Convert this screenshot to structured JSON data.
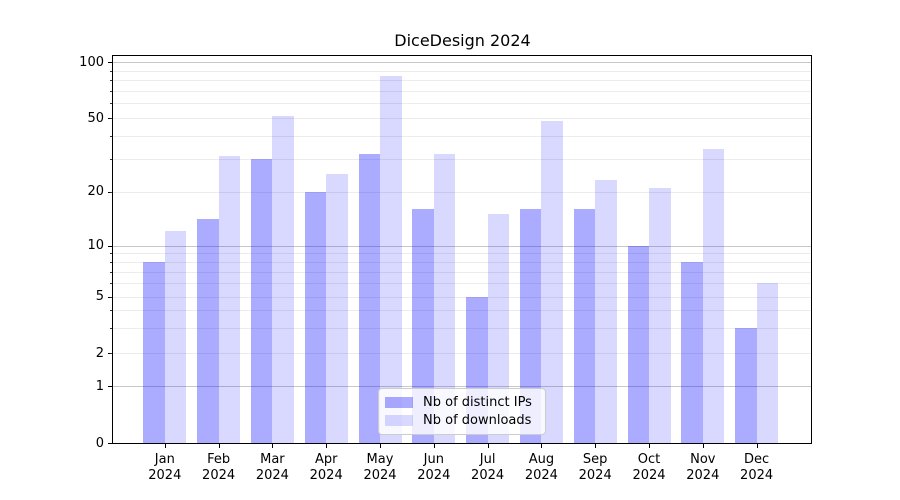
{
  "chart_data": {
    "type": "bar",
    "title": "DiceDesign 2024",
    "categories": [
      {
        "month": "Jan",
        "year": "2024"
      },
      {
        "month": "Feb",
        "year": "2024"
      },
      {
        "month": "Mar",
        "year": "2024"
      },
      {
        "month": "Apr",
        "year": "2024"
      },
      {
        "month": "May",
        "year": "2024"
      },
      {
        "month": "Jun",
        "year": "2024"
      },
      {
        "month": "Jul",
        "year": "2024"
      },
      {
        "month": "Aug",
        "year": "2024"
      },
      {
        "month": "Sep",
        "year": "2024"
      },
      {
        "month": "Oct",
        "year": "2024"
      },
      {
        "month": "Nov",
        "year": "2024"
      },
      {
        "month": "Dec",
        "year": "2024"
      }
    ],
    "series": [
      {
        "name": "Nb of distinct IPs",
        "values": [
          8,
          14,
          30,
          20,
          32,
          16,
          5,
          16,
          16,
          10,
          8,
          3
        ],
        "base_color": "#0000ff",
        "alpha": 0.33,
        "color_hex": "#a8a8ff"
      },
      {
        "name": "Nb of downloads",
        "values": [
          12,
          31,
          51,
          25,
          84,
          32,
          15,
          48,
          23,
          21,
          34,
          6
        ],
        "base_color": "#0000ff",
        "alpha": 0.15,
        "color_hex": "#d9d9ff"
      }
    ],
    "yticks": [
      0,
      1,
      2,
      5,
      10,
      20,
      50,
      100
    ],
    "ylim": [
      0,
      109
    ],
    "yscale": "symlog-like",
    "grid": "both",
    "legend_position": "lower center",
    "xlabel": "",
    "ylabel": ""
  }
}
